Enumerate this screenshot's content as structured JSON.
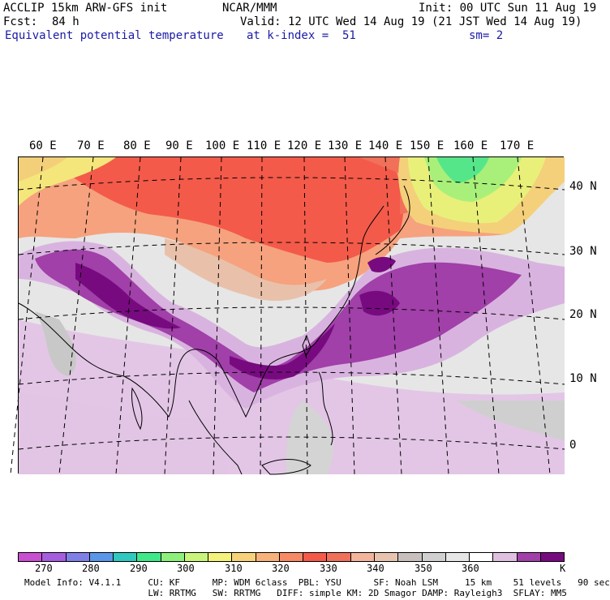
{
  "header": {
    "model": "ACCLIP 15km ARW-GFS init",
    "center": "NCAR/MMM",
    "init": "Init: 00 UTC Sun 11 Aug 19",
    "fcst_label": "Fcst:",
    "fcst_value": "84 h",
    "valid": "Valid: 12 UTC Wed 14 Aug 19 (21 JST Wed 14 Aug 19)",
    "field_name": "Equivalent potential temperature",
    "level": "at k-index =  51",
    "smoothing": "sm= 2"
  },
  "map": {
    "lon_labels": [
      "60 E",
      "70 E",
      "80 E",
      "90 E",
      "100 E",
      "110 E",
      "120 E",
      "130 E",
      "140 E",
      "150 E",
      "160 E",
      "170 E"
    ],
    "lat_labels": [
      "40 N",
      "30 N",
      "20 N",
      "10 N",
      "0"
    ]
  },
  "colorbar": {
    "unit": "K",
    "labels": [
      "270",
      "280",
      "290",
      "300",
      "310",
      "320",
      "330",
      "340",
      "350",
      "360"
    ],
    "colors": [
      "#c84fcf",
      "#a55ee0",
      "#7f7fe8",
      "#5b97e8",
      "#2fc9c0",
      "#3fe888",
      "#8cf07a",
      "#c8f57a",
      "#f4f27a",
      "#f7d27a",
      "#f6b27a",
      "#f78a64",
      "#f35a4a",
      "#f0705a",
      "#f2b49a",
      "#e8c4b0",
      "#c8c0bc",
      "#d0d0d0",
      "#e6e6e6",
      "#ffffff",
      "#e0c0e0",
      "#a040a8",
      "#780a80"
    ]
  },
  "footer": {
    "line1": "Model Info: V4.1.1     CU: KF      MP: WDM 6class  PBL: YSU      SF: Noah LSM     15 km    51 levels   90 sec",
    "line2": "                       LW: RRTMG   SW: RRTMG   DIFF: simple KM: 2D Smagor DAMP: Rayleigh3  SFLAY: MM5"
  }
}
